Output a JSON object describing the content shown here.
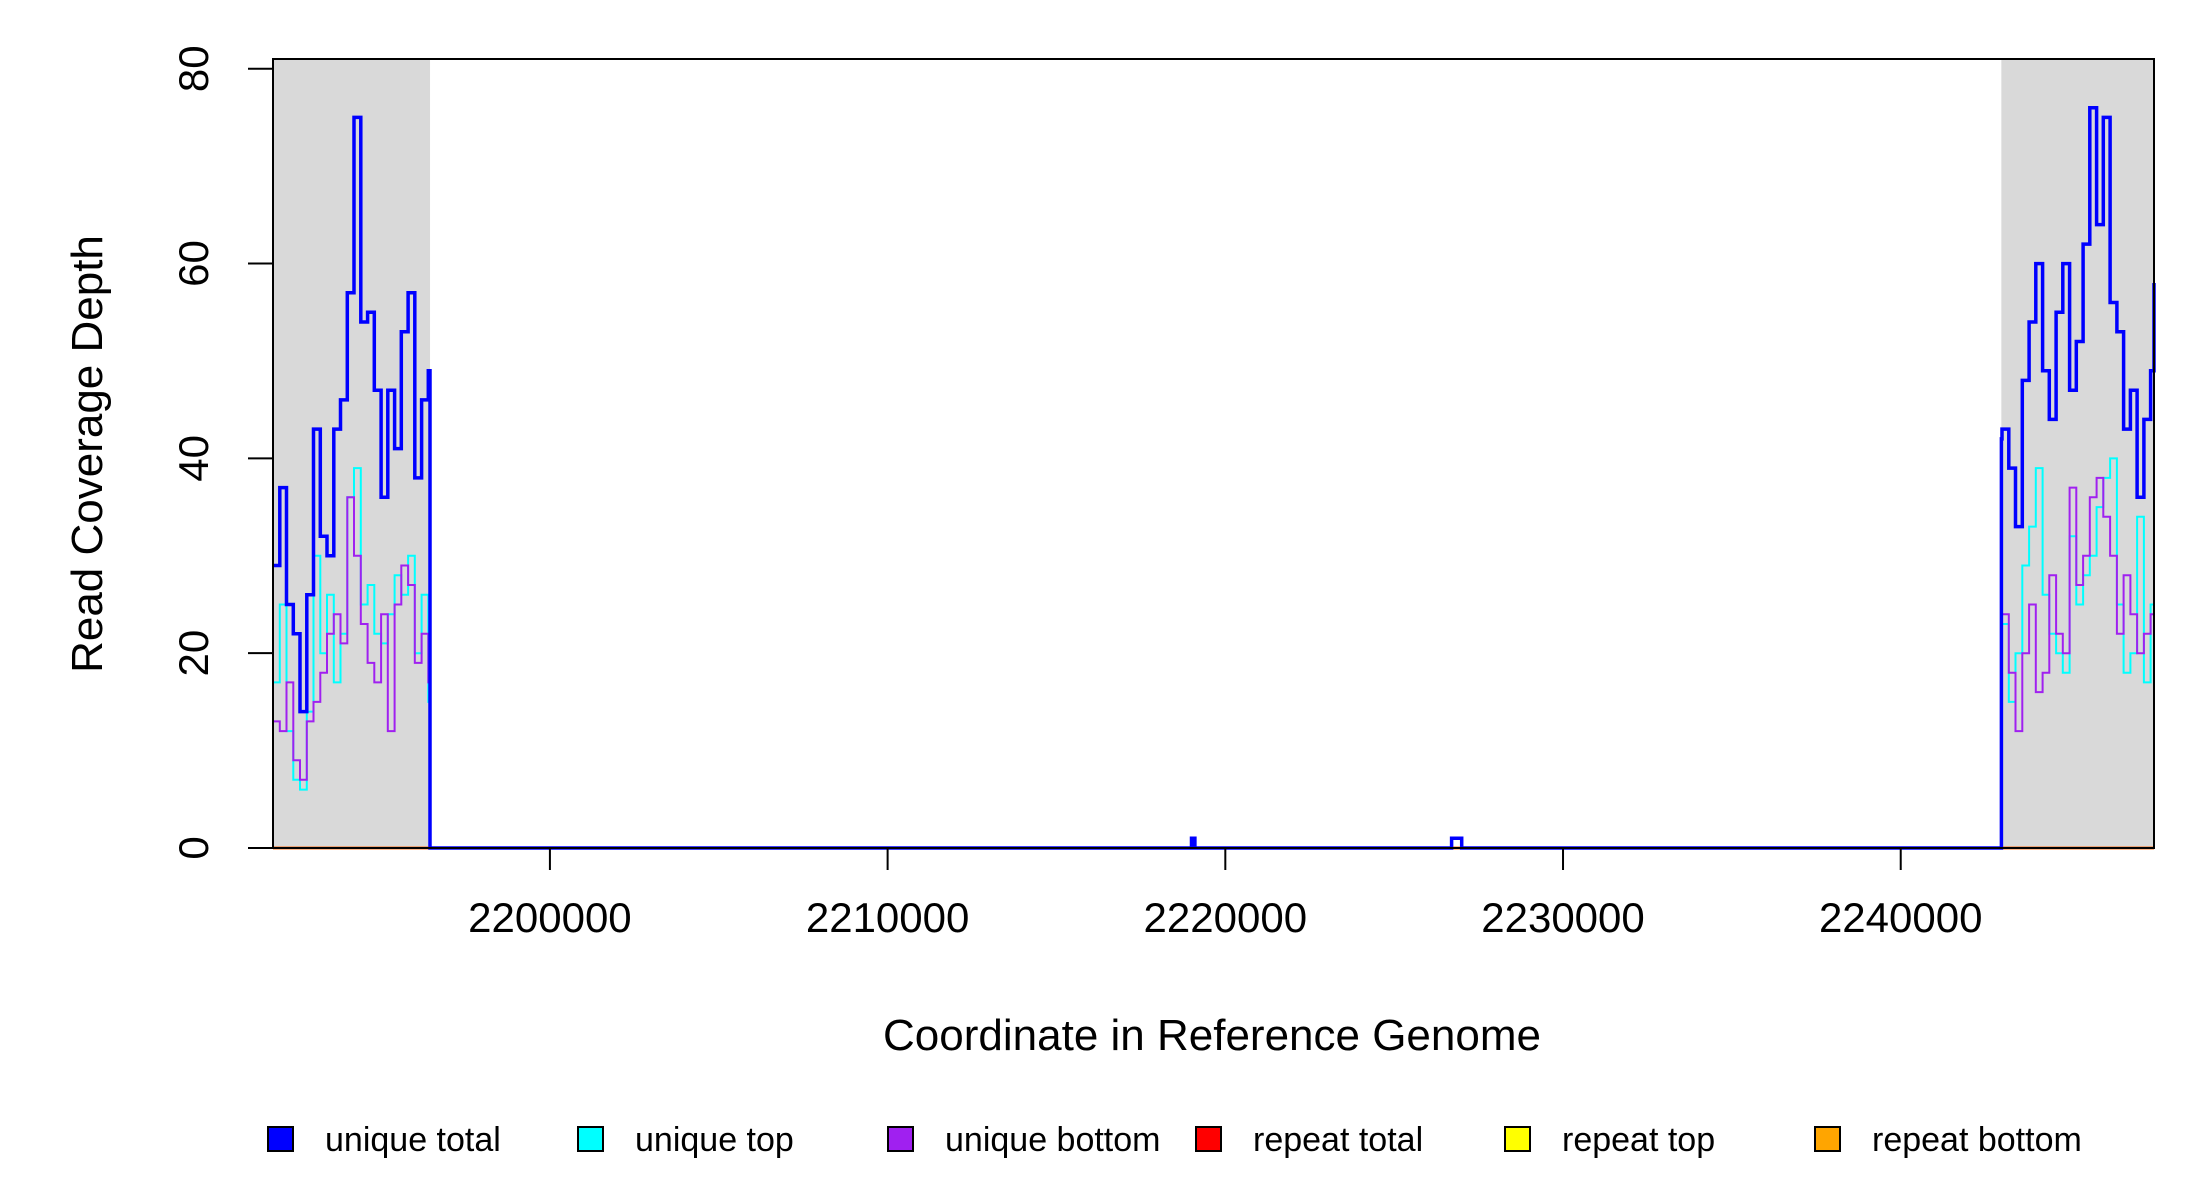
{
  "chart_data": {
    "type": "line",
    "title": "",
    "xlabel": "Coordinate in Reference Genome",
    "ylabel": "Read Coverage Depth",
    "xlim": [
      2191800,
      2247500
    ],
    "ylim": [
      0,
      81
    ],
    "x_ticks": [
      {
        "value": 2200000,
        "label": "2200000"
      },
      {
        "value": 2210000,
        "label": "2210000"
      },
      {
        "value": 2220000,
        "label": "2220000"
      },
      {
        "value": 2230000,
        "label": "2230000"
      },
      {
        "value": 2240000,
        "label": "2240000"
      }
    ],
    "y_ticks": [
      {
        "value": 0,
        "label": "0"
      },
      {
        "value": 20,
        "label": "20"
      },
      {
        "value": 40,
        "label": "40"
      },
      {
        "value": 60,
        "label": "60"
      },
      {
        "value": 80,
        "label": "80"
      }
    ],
    "shaded_regions": [
      {
        "x_start": 2191800,
        "x_end": 2196450,
        "color": "#d9d9d9"
      },
      {
        "x_start": 2242980,
        "x_end": 2247500,
        "color": "#d9d9d9"
      }
    ],
    "legend": {
      "placement": "bottom",
      "items": [
        {
          "label": "unique total",
          "color": "#0000ff"
        },
        {
          "label": "unique top",
          "color": "#00ffff"
        },
        {
          "label": "unique bottom",
          "color": "#a020f0"
        },
        {
          "label": "repeat total",
          "color": "#ff0000"
        },
        {
          "label": "repeat top",
          "color": "#ffff00"
        },
        {
          "label": "repeat bottom",
          "color": "#ffa500"
        }
      ]
    },
    "series": [
      {
        "name": "unique total",
        "color": "#0000ff",
        "x": [
          2191800,
          2192000,
          2192200,
          2192400,
          2192600,
          2192800,
          2193000,
          2193200,
          2193400,
          2193600,
          2193800,
          2194000,
          2194200,
          2194400,
          2194600,
          2194800,
          2195000,
          2195200,
          2195400,
          2195600,
          2195800,
          2196000,
          2196200,
          2196400,
          2196450,
          2219000,
          2219100,
          2226700,
          2227000,
          2242980,
          2243000,
          2243200,
          2243400,
          2243600,
          2243800,
          2244000,
          2244200,
          2244400,
          2244600,
          2244800,
          2245000,
          2245200,
          2245400,
          2245600,
          2245800,
          2246000,
          2246200,
          2246400,
          2246600,
          2246800,
          2247000,
          2247200,
          2247400,
          2247500
        ],
        "y": [
          29,
          37,
          25,
          22,
          14,
          26,
          43,
          32,
          30,
          43,
          46,
          57,
          75,
          54,
          55,
          47,
          36,
          47,
          41,
          53,
          57,
          38,
          46,
          49,
          0,
          1,
          0,
          1,
          0,
          42,
          43,
          39,
          33,
          48,
          54,
          60,
          49,
          44,
          55,
          60,
          47,
          52,
          62,
          76,
          64,
          75,
          56,
          53,
          43,
          47,
          36,
          44,
          49,
          58
        ]
      },
      {
        "name": "unique top",
        "color": "#00ffff",
        "x": [
          2191800,
          2192000,
          2192200,
          2192400,
          2192600,
          2192800,
          2193000,
          2193200,
          2193400,
          2193600,
          2193800,
          2194000,
          2194200,
          2194400,
          2194600,
          2194800,
          2195000,
          2195200,
          2195400,
          2195600,
          2195800,
          2196000,
          2196200,
          2196400,
          2196450,
          2242980,
          2243000,
          2243200,
          2243400,
          2243600,
          2243800,
          2244000,
          2244200,
          2244400,
          2244600,
          2244800,
          2245000,
          2245200,
          2245400,
          2245600,
          2245800,
          2246000,
          2246200,
          2246400,
          2246600,
          2246800,
          2247000,
          2247200,
          2247400,
          2247500
        ],
        "y": [
          17,
          25,
          12,
          7,
          6,
          14,
          30,
          20,
          26,
          17,
          22,
          36,
          39,
          25,
          27,
          22,
          21,
          24,
          28,
          26,
          30,
          20,
          26,
          15,
          0,
          20,
          23,
          15,
          20,
          29,
          33,
          39,
          26,
          22,
          20,
          18,
          32,
          25,
          28,
          30,
          35,
          38,
          40,
          25,
          18,
          20,
          34,
          17,
          25,
          33
        ]
      },
      {
        "name": "unique bottom",
        "color": "#a020f0",
        "x": [
          2191800,
          2192000,
          2192200,
          2192400,
          2192600,
          2192800,
          2193000,
          2193200,
          2193400,
          2193600,
          2193800,
          2194000,
          2194200,
          2194400,
          2194600,
          2194800,
          2195000,
          2195200,
          2195400,
          2195600,
          2195800,
          2196000,
          2196200,
          2196400,
          2196450,
          2242980,
          2243000,
          2243200,
          2243400,
          2243600,
          2243800,
          2244000,
          2244200,
          2244400,
          2244600,
          2244800,
          2245000,
          2245200,
          2245400,
          2245600,
          2245800,
          2246000,
          2246200,
          2246400,
          2246600,
          2246800,
          2247000,
          2247200,
          2247400,
          2247500
        ],
        "y": [
          13,
          12,
          17,
          9,
          7,
          13,
          15,
          18,
          22,
          24,
          21,
          36,
          30,
          23,
          19,
          17,
          24,
          12,
          25,
          29,
          27,
          19,
          22,
          17,
          0,
          22,
          24,
          18,
          12,
          20,
          25,
          16,
          18,
          28,
          22,
          20,
          37,
          27,
          30,
          36,
          38,
          34,
          30,
          22,
          28,
          24,
          20,
          22,
          24,
          25
        ]
      },
      {
        "name": "repeat total",
        "color": "#ff0000",
        "x": [
          2191800,
          2247500
        ],
        "y": [
          0,
          0
        ]
      },
      {
        "name": "repeat top",
        "color": "#ffff00",
        "x": [
          2191800,
          2247500
        ],
        "y": [
          0,
          0
        ]
      },
      {
        "name": "repeat bottom",
        "color": "#ffa500",
        "x": [
          2191800,
          2247500
        ],
        "y": [
          0,
          0
        ]
      }
    ]
  }
}
